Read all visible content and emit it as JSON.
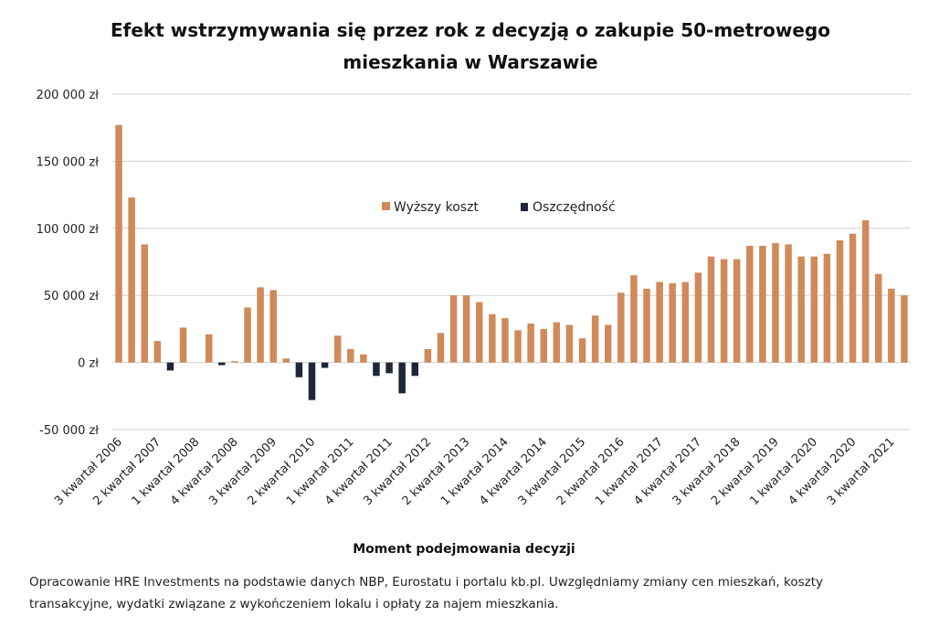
{
  "chart_data": {
    "type": "bar",
    "title": [
      "Efekt wstrzymywania się przez rok z decyzją o zakupie 50-metrowego",
      "mieszkania w Warszawie"
    ],
    "xlabel": "Moment podejmowania decyzji",
    "ylabel": "",
    "ylim": [
      -50000,
      200000
    ],
    "yticks": [
      200000,
      150000,
      100000,
      50000,
      0,
      -50000
    ],
    "ytick_labels": [
      "200 000 zł",
      "150 000 zł",
      "100 000 zł",
      "50 000 zł",
      "0 zł",
      "-50 000 zł"
    ],
    "grid": true,
    "legend_position": "top-center (inside plot)",
    "colors": {
      "Wyższy koszt": "#d08a5a",
      "Oszczędność": "#1e2638",
      "grid": "#d0d0d0"
    },
    "start_quarter": 3,
    "start_year": 2006,
    "xtick_labels": [
      "3 kwartał 2006",
      "2 kwartał 2007",
      "1 kwartał 2008",
      "4 kwartał 2008",
      "3 kwartał 2009",
      "2 kwartał 2010",
      "1 kwartał 2011",
      "4 kwartał 2011",
      "3 kwartał 2012",
      "2 kwartał 2013",
      "1 kwartał 2014",
      "4 kwartał 2014",
      "3 kwartał 2015",
      "2 kwartał 2016",
      "1 kwartał 2017",
      "4 kwartał 2017",
      "3 kwartał 2018",
      "2 kwartał 2019",
      "1 kwartał 2020",
      "4 kwartał 2020",
      "3 kwartał 2021"
    ],
    "xtick_every": 3,
    "series": [
      {
        "name": "Wyższy koszt",
        "rule": "positive values"
      },
      {
        "name": "Oszczędność",
        "rule": "negative values"
      }
    ],
    "values": [
      177000,
      123000,
      88000,
      16000,
      -6000,
      26000,
      0,
      21000,
      -2000,
      1000,
      41000,
      56000,
      54000,
      3000,
      -11000,
      -28000,
      -4000,
      20000,
      10000,
      6000,
      -10000,
      -8000,
      -23000,
      -10000,
      10000,
      22000,
      50000,
      50000,
      45000,
      36000,
      33000,
      24000,
      29000,
      25000,
      30000,
      28000,
      18000,
      35000,
      28000,
      52000,
      65000,
      55000,
      60000,
      59000,
      60000,
      67000,
      79000,
      77000,
      77000,
      87000,
      87000,
      89000,
      88000,
      79000,
      79000,
      81000,
      91000,
      96000,
      106000,
      66000,
      55000,
      50000
    ]
  },
  "footnote": [
    "Opracowanie HRE Investments na podstawie danych NBP, Eurostatu i portalu kb.pl. Uwzględniamy zmiany cen mieszkań, koszty",
    "transakcyjne, wydatki związane z wykończeniem lokalu i opłaty za najem mieszkania."
  ]
}
